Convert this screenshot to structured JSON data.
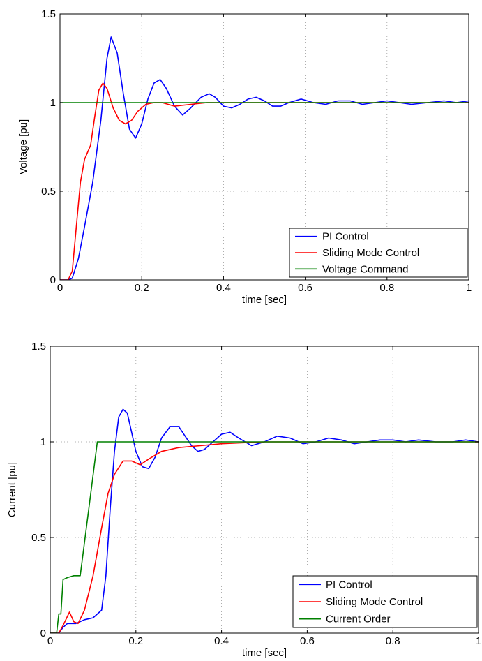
{
  "chart_data": [
    {
      "type": "line",
      "title": "",
      "xlabel": "time [sec]",
      "ylabel": "Voltage [pu]",
      "xlim": [
        0,
        1
      ],
      "ylim": [
        0,
        1.5
      ],
      "xticks": [
        0,
        0.2,
        0.4,
        0.6,
        0.8,
        1
      ],
      "xtick_labels": [
        "0",
        "0.2",
        "0.4",
        "0.6",
        "0.8",
        "1"
      ],
      "yticks": [
        0,
        0.5,
        1,
        1.5
      ],
      "ytick_labels": [
        "0",
        "0.5",
        "1",
        "1.5"
      ],
      "grid": true,
      "legend_position": "bottom-right",
      "series": [
        {
          "name": "PI Control",
          "color": "#0000ff",
          "x": [
            0,
            0.02,
            0.03,
            0.045,
            0.06,
            0.08,
            0.1,
            0.115,
            0.125,
            0.14,
            0.155,
            0.17,
            0.185,
            0.2,
            0.215,
            0.23,
            0.245,
            0.26,
            0.28,
            0.3,
            0.32,
            0.345,
            0.365,
            0.38,
            0.4,
            0.42,
            0.44,
            0.46,
            0.48,
            0.5,
            0.52,
            0.54,
            0.56,
            0.59,
            0.62,
            0.65,
            0.68,
            0.71,
            0.74,
            0.77,
            0.8,
            0.83,
            0.86,
            0.9,
            0.94,
            0.97,
            1.0
          ],
          "y": [
            0,
            0,
            0.01,
            0.12,
            0.3,
            0.55,
            0.9,
            1.25,
            1.37,
            1.28,
            1.05,
            0.85,
            0.8,
            0.88,
            1.02,
            1.11,
            1.13,
            1.08,
            0.98,
            0.93,
            0.97,
            1.03,
            1.05,
            1.03,
            0.98,
            0.97,
            0.99,
            1.02,
            1.03,
            1.01,
            0.98,
            0.98,
            1.0,
            1.02,
            1.0,
            0.99,
            1.01,
            1.01,
            0.99,
            1.0,
            1.01,
            1.0,
            0.99,
            1.0,
            1.01,
            1.0,
            1.01
          ]
        },
        {
          "name": "Sliding Mode Control",
          "color": "#ff0000",
          "x": [
            0,
            0.02,
            0.03,
            0.04,
            0.05,
            0.06,
            0.075,
            0.085,
            0.095,
            0.105,
            0.115,
            0.13,
            0.145,
            0.16,
            0.175,
            0.19,
            0.21,
            0.23,
            0.25,
            0.28,
            0.32,
            0.36,
            0.4,
            0.5,
            0.6,
            0.7,
            0.8,
            0.9,
            1.0
          ],
          "y": [
            0,
            0,
            0.05,
            0.3,
            0.55,
            0.68,
            0.76,
            0.92,
            1.07,
            1.11,
            1.08,
            0.97,
            0.9,
            0.88,
            0.9,
            0.95,
            0.99,
            1.0,
            1.0,
            0.98,
            0.99,
            1.0,
            1.0,
            1.0,
            1.0,
            1.0,
            1.0,
            1.0,
            1.0
          ]
        },
        {
          "name": "Voltage Command",
          "color": "#008000",
          "x": [
            0,
            1
          ],
          "y": [
            1,
            1
          ]
        }
      ]
    },
    {
      "type": "line",
      "title": "",
      "xlabel": "time [sec]",
      "ylabel": "Current [pu]",
      "xlim": [
        0,
        1
      ],
      "ylim": [
        0,
        1.5
      ],
      "xticks": [
        0,
        0.2,
        0.4,
        0.6,
        0.8,
        1
      ],
      "xtick_labels": [
        "0",
        "0.2",
        "0.4",
        "0.6",
        "0.8",
        "1"
      ],
      "yticks": [
        0,
        0.5,
        1,
        1.5
      ],
      "ytick_labels": [
        "0",
        "0.5",
        "1",
        "1.5"
      ],
      "grid": true,
      "legend_position": "bottom-right",
      "series": [
        {
          "name": "PI Control",
          "color": "#0000ff",
          "x": [
            0,
            0.02,
            0.03,
            0.04,
            0.05,
            0.06,
            0.08,
            0.1,
            0.12,
            0.13,
            0.14,
            0.15,
            0.16,
            0.17,
            0.18,
            0.19,
            0.2,
            0.215,
            0.23,
            0.245,
            0.26,
            0.28,
            0.3,
            0.315,
            0.33,
            0.345,
            0.36,
            0.38,
            0.4,
            0.42,
            0.44,
            0.47,
            0.5,
            0.53,
            0.56,
            0.59,
            0.62,
            0.65,
            0.68,
            0.71,
            0.74,
            0.77,
            0.8,
            0.83,
            0.86,
            0.9,
            0.94,
            0.97,
            1.0
          ],
          "y": [
            0,
            0,
            0.03,
            0.05,
            0.05,
            0.05,
            0.07,
            0.08,
            0.12,
            0.3,
            0.65,
            0.95,
            1.13,
            1.17,
            1.15,
            1.05,
            0.95,
            0.87,
            0.86,
            0.92,
            1.02,
            1.08,
            1.08,
            1.03,
            0.98,
            0.95,
            0.96,
            1.0,
            1.04,
            1.05,
            1.02,
            0.98,
            1.0,
            1.03,
            1.02,
            0.99,
            1.0,
            1.02,
            1.01,
            0.99,
            1.0,
            1.01,
            1.01,
            1.0,
            1.01,
            1.0,
            1.0,
            1.01,
            1.0
          ]
        },
        {
          "name": "Sliding Mode Control",
          "color": "#ff0000",
          "x": [
            0,
            0.02,
            0.03,
            0.045,
            0.055,
            0.065,
            0.08,
            0.1,
            0.12,
            0.135,
            0.15,
            0.17,
            0.19,
            0.21,
            0.23,
            0.26,
            0.3,
            0.35,
            0.4,
            0.5,
            0.6,
            0.7,
            0.8,
            0.9,
            1.0
          ],
          "y": [
            0,
            0,
            0.04,
            0.11,
            0.06,
            0.05,
            0.12,
            0.3,
            0.55,
            0.73,
            0.83,
            0.9,
            0.9,
            0.88,
            0.91,
            0.95,
            0.97,
            0.98,
            0.99,
            1.0,
            1.0,
            1.0,
            1.0,
            1.0,
            1.0
          ]
        },
        {
          "name": "Current Order",
          "color": "#008000",
          "x": [
            0,
            0.015,
            0.02,
            0.025,
            0.03,
            0.04,
            0.055,
            0.07,
            0.09,
            0.11,
            0.115,
            1.0
          ],
          "y": [
            0,
            0,
            0.1,
            0.1,
            0.28,
            0.29,
            0.3,
            0.3,
            0.65,
            1.0,
            1.0,
            1.0
          ]
        }
      ]
    }
  ]
}
